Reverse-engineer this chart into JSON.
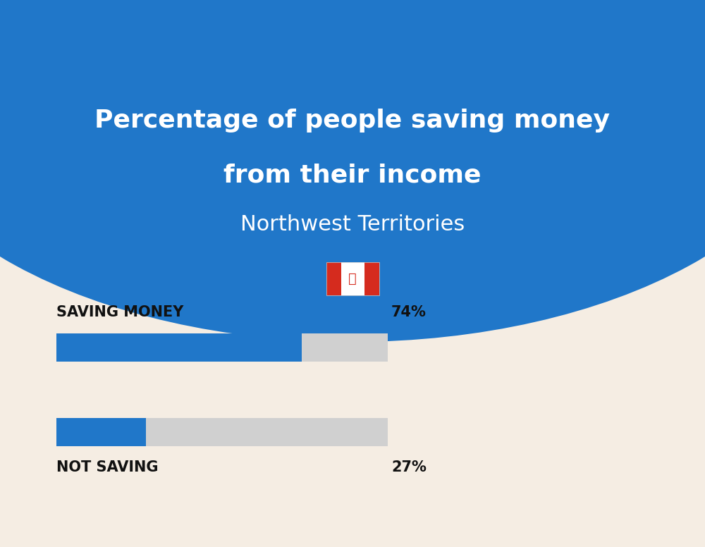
{
  "title_line1": "Percentage of people saving money",
  "title_line2": "from their income",
  "subtitle": "Northwest Territories",
  "background_color": "#f5ede3",
  "header_color": "#2077c9",
  "bar_color": "#2077c9",
  "bar_bg_color": "#d0d0d0",
  "categories": [
    "SAVING MONEY",
    "NOT SAVING"
  ],
  "values": [
    74,
    27
  ],
  "label_color": "#111111",
  "value_color": "#111111",
  "title_color": "#ffffff",
  "subtitle_color": "#ffffff",
  "fig_width": 10.0,
  "fig_height": 7.76
}
